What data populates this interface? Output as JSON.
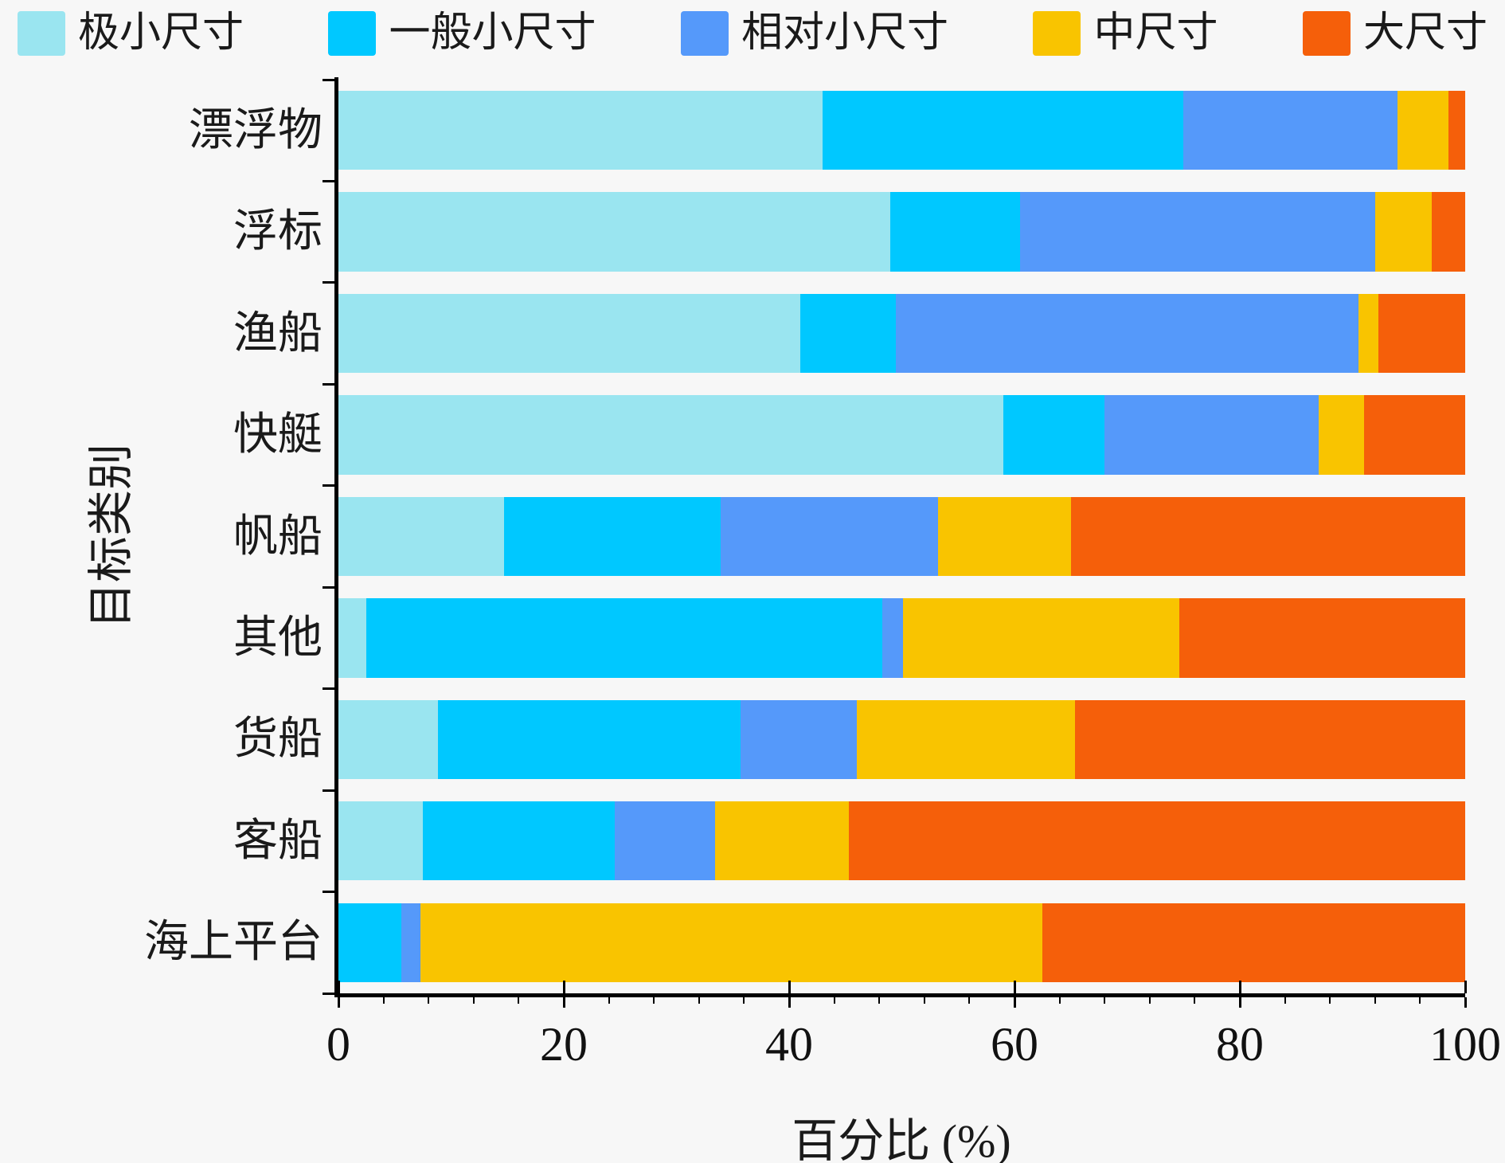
{
  "chart_data": {
    "type": "bar",
    "orientation": "horizontal",
    "stacked": true,
    "title": "",
    "xlabel": "百分比 (%)",
    "ylabel": "目标类别",
    "xlim": [
      0,
      100
    ],
    "x_major_ticks": [
      0,
      20,
      40,
      60,
      80,
      100
    ],
    "x_minor_step": 4,
    "grid": false,
    "legend_position": "top",
    "categories": [
      "漂浮物",
      "浮标",
      "渔船",
      "快艇",
      "帆船",
      "其他",
      "货船",
      "客船",
      "海上平台"
    ],
    "series": [
      {
        "name": "极小尺寸",
        "color": "#9ae5f0",
        "values": [
          43.0,
          49.0,
          41.0,
          59.0,
          14.7,
          2.5,
          8.8,
          7.5,
          0.0
        ]
      },
      {
        "name": "一般小尺寸",
        "color": "#00c8ff",
        "values": [
          32.0,
          11.5,
          8.5,
          9.0,
          19.2,
          45.8,
          26.9,
          17.0,
          5.6
        ]
      },
      {
        "name": "相对小尺寸",
        "color": "#5599fa",
        "values": [
          19.0,
          31.5,
          41.0,
          19.0,
          19.3,
          1.8,
          10.3,
          8.9,
          1.7
        ]
      },
      {
        "name": "中尺寸",
        "color": "#f9c400",
        "values": [
          4.5,
          5.0,
          1.8,
          4.0,
          11.8,
          24.5,
          19.4,
          11.9,
          55.2
        ]
      },
      {
        "name": "大尺寸",
        "color": "#f55f0a",
        "values": [
          1.5,
          3.0,
          7.7,
          9.0,
          35.0,
          25.4,
          34.6,
          54.7,
          37.5
        ]
      }
    ],
    "colors": {
      "axis": "#000000",
      "text": "#1a1a1a",
      "background": "#f7f7f7"
    }
  }
}
